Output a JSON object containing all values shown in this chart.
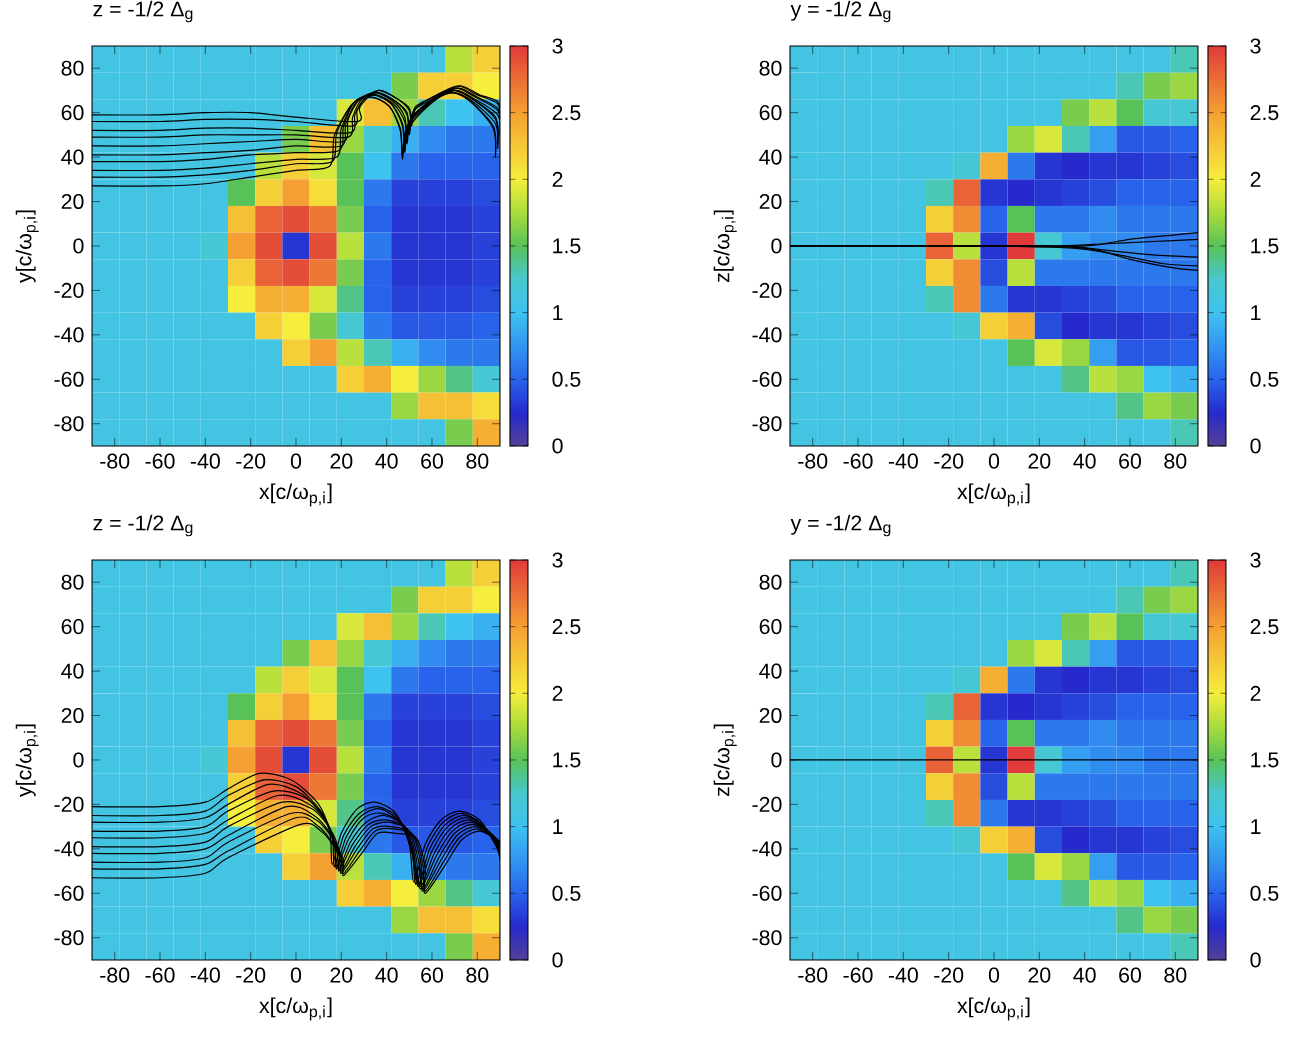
{
  "chart_data": [
    {
      "type": "heatmap",
      "title": "z = -1/2 Δ$_{g}$",
      "xlabel": "x[c/ω$_{p,i}$]",
      "ylabel": "y[c/ω$_{p,i}$]",
      "xlim": [
        -90,
        90
      ],
      "ylim": [
        -90,
        90
      ],
      "xticks": [
        -80,
        -60,
        -40,
        -20,
        0,
        20,
        40,
        60,
        80
      ],
      "yticks": [
        -80,
        -60,
        -40,
        -20,
        0,
        20,
        40,
        60,
        80
      ],
      "clim": [
        0,
        3
      ],
      "cticks": [
        0,
        0.5,
        1,
        1.5,
        2,
        2.5,
        3
      ],
      "cells": [
        [
          1.1,
          1.1,
          1.1,
          1.1,
          1.1,
          1.1,
          1.1,
          1.1,
          1.1,
          1.1,
          1.1,
          1.1,
          1.1,
          1.8,
          2.2
        ],
        [
          1.1,
          1.1,
          1.1,
          1.1,
          1.1,
          1.1,
          1.1,
          1.1,
          1.1,
          1.1,
          1.1,
          1.6,
          2.2,
          2.2,
          2.0
        ],
        [
          1.1,
          1.1,
          1.1,
          1.1,
          1.1,
          1.1,
          1.1,
          1.1,
          1.1,
          1.9,
          2.3,
          1.7,
          1.3,
          1.0,
          0.9
        ],
        [
          1.1,
          1.1,
          1.1,
          1.1,
          1.1,
          1.1,
          1.1,
          1.6,
          2.3,
          1.7,
          1.2,
          0.9,
          0.7,
          0.6,
          0.6
        ],
        [
          1.1,
          1.1,
          1.1,
          1.1,
          1.1,
          1.1,
          1.8,
          2.2,
          1.9,
          1.5,
          1.0,
          0.6,
          0.5,
          0.5,
          0.5
        ],
        [
          1.1,
          1.1,
          1.1,
          1.1,
          1.1,
          1.5,
          2.2,
          2.5,
          2.1,
          1.5,
          0.6,
          0.35,
          0.35,
          0.35,
          0.4
        ],
        [
          1.1,
          1.1,
          1.1,
          1.1,
          1.1,
          2.3,
          2.8,
          2.9,
          2.7,
          1.6,
          0.5,
          0.3,
          0.3,
          0.3,
          0.35
        ],
        [
          1.1,
          1.1,
          1.1,
          1.1,
          1.2,
          2.5,
          2.9,
          0.3,
          2.9,
          1.8,
          0.6,
          0.3,
          0.3,
          0.3,
          0.35
        ],
        [
          1.1,
          1.1,
          1.1,
          1.1,
          1.1,
          2.2,
          2.8,
          2.9,
          2.7,
          1.6,
          0.5,
          0.3,
          0.3,
          0.3,
          0.35
        ],
        [
          1.1,
          1.1,
          1.1,
          1.1,
          1.1,
          2.0,
          2.4,
          2.4,
          1.9,
          1.4,
          0.5,
          0.35,
          0.35,
          0.35,
          0.4
        ],
        [
          1.1,
          1.1,
          1.1,
          1.1,
          1.1,
          1.1,
          2.2,
          2.0,
          1.6,
          1.2,
          0.6,
          0.45,
          0.45,
          0.45,
          0.5
        ],
        [
          1.1,
          1.1,
          1.1,
          1.1,
          1.1,
          1.1,
          1.1,
          2.2,
          2.5,
          1.8,
          1.3,
          0.9,
          0.7,
          0.6,
          0.6
        ],
        [
          1.1,
          1.1,
          1.1,
          1.1,
          1.1,
          1.1,
          1.1,
          1.1,
          1.1,
          2.2,
          2.4,
          2.0,
          1.7,
          1.4,
          1.2
        ],
        [
          1.1,
          1.1,
          1.1,
          1.1,
          1.1,
          1.1,
          1.1,
          1.1,
          1.1,
          1.1,
          1.1,
          1.7,
          2.3,
          2.3,
          2.1
        ],
        [
          1.1,
          1.1,
          1.1,
          1.1,
          1.1,
          1.1,
          1.1,
          1.1,
          1.1,
          1.1,
          1.1,
          1.1,
          1.1,
          1.6,
          2.4
        ]
      ],
      "series": [
        {
          "type": "line",
          "color": "#000000",
          "x": [
            -90,
            -60,
            -40,
            -20,
            0,
            15,
            17,
            25,
            33,
            41,
            46,
            47,
            49,
            61,
            69,
            77,
            87,
            88
          ],
          "values": [
            27,
            27,
            28,
            31,
            34,
            36,
            50,
            64,
            67,
            63,
            52,
            39,
            52,
            66,
            69,
            65,
            53,
            40
          ]
        },
        {
          "type": "line",
          "color": "#000000",
          "x": [
            -90,
            -60,
            -40,
            -20,
            0,
            16,
            18,
            25,
            33,
            41,
            46,
            47,
            49,
            61,
            69,
            77,
            87,
            88
          ],
          "values": [
            31,
            31,
            32,
            34,
            37,
            38,
            51,
            64,
            67,
            63,
            53,
            41,
            54,
            66,
            69,
            65,
            54,
            42
          ]
        },
        {
          "type": "line",
          "color": "#000000",
          "x": [
            -90,
            -60,
            -40,
            -20,
            0,
            18,
            20,
            26,
            34,
            42,
            47,
            48,
            50,
            62,
            70,
            78,
            88,
            89
          ],
          "values": [
            34,
            34,
            35,
            37,
            39,
            40,
            53,
            65,
            68,
            64,
            54,
            42,
            54,
            66,
            69,
            65,
            55,
            44
          ]
        },
        {
          "type": "line",
          "color": "#000000",
          "x": [
            -90,
            -60,
            -40,
            -20,
            0,
            19,
            21,
            26,
            34,
            42,
            47,
            48,
            50,
            62,
            70,
            78,
            88,
            89
          ],
          "values": [
            38,
            38,
            39,
            41,
            42,
            43,
            54,
            65,
            68,
            64,
            55,
            44,
            56,
            67,
            70,
            66,
            57,
            46
          ]
        },
        {
          "type": "line",
          "color": "#000000",
          "x": [
            -90,
            -60,
            -40,
            -20,
            0,
            20,
            22,
            27,
            35,
            43,
            48,
            49,
            51,
            62,
            70,
            78,
            88,
            89
          ],
          "values": [
            41,
            41,
            42,
            43,
            45,
            45,
            55,
            65,
            68,
            64,
            56,
            46,
            57,
            67,
            70,
            66,
            58,
            48
          ]
        },
        {
          "type": "line",
          "color": "#000000",
          "x": [
            -90,
            -60,
            -40,
            -20,
            0,
            21,
            23,
            28,
            35,
            43,
            48,
            49,
            51,
            63,
            71,
            79,
            89,
            90
          ],
          "values": [
            45,
            45,
            46,
            47,
            48,
            47,
            57,
            66,
            69,
            65,
            58,
            48,
            58,
            67,
            70,
            66,
            59,
            50
          ]
        },
        {
          "type": "line",
          "color": "#000000",
          "x": [
            -90,
            -60,
            -40,
            -20,
            0,
            23,
            25,
            29,
            36,
            44,
            49,
            50,
            52,
            63,
            71,
            79,
            89,
            90
          ],
          "values": [
            49,
            49,
            50,
            50,
            50,
            49,
            58,
            66,
            69,
            65,
            59,
            50,
            59,
            68,
            71,
            67,
            61,
            52
          ]
        },
        {
          "type": "line",
          "color": "#000000",
          "x": [
            -90,
            -60,
            -40,
            -20,
            0,
            24,
            26,
            30,
            36,
            44,
            49,
            50,
            52,
            64,
            72,
            80,
            89,
            90
          ],
          "values": [
            52,
            52,
            53,
            53,
            52,
            51,
            59,
            66,
            69,
            65,
            60,
            52,
            61,
            68,
            71,
            67,
            62,
            55
          ]
        },
        {
          "type": "line",
          "color": "#000000",
          "x": [
            -90,
            -60,
            -40,
            -20,
            0,
            25,
            27,
            31,
            37,
            45,
            50,
            51,
            53,
            64,
            72,
            80,
            89,
            90
          ],
          "values": [
            56,
            56,
            57,
            57,
            56,
            54,
            61,
            67,
            70,
            66,
            61,
            54,
            62,
            69,
            72,
            68,
            64,
            57
          ]
        },
        {
          "type": "line",
          "color": "#000000",
          "x": [
            -90,
            -60,
            -40,
            -20,
            0,
            27,
            28,
            32,
            37,
            45,
            50,
            51,
            53,
            65,
            73,
            81,
            89,
            90
          ],
          "values": [
            59,
            59,
            60,
            60,
            58,
            56,
            62,
            67,
            70,
            66,
            62,
            56,
            63,
            69,
            72,
            68,
            65,
            59
          ]
        }
      ]
    },
    {
      "type": "heatmap",
      "title": "y = -1/2 Δ$_{g}$",
      "xlabel": "x[c/ω$_{p,i}$]",
      "ylabel": "z[c/ω$_{p,i}$]",
      "xlim": [
        -90,
        90
      ],
      "ylim": [
        -90,
        90
      ],
      "xticks": [
        -80,
        -60,
        -40,
        -20,
        0,
        20,
        40,
        60,
        80
      ],
      "yticks": [
        -80,
        -60,
        -40,
        -20,
        0,
        20,
        40,
        60,
        80
      ],
      "clim": [
        0,
        3
      ],
      "cticks": [
        0,
        0.5,
        1,
        1.5,
        2,
        2.5,
        3
      ],
      "cells": [
        [
          1.1,
          1.1,
          1.1,
          1.1,
          1.1,
          1.1,
          1.1,
          1.1,
          1.1,
          1.1,
          1.1,
          1.1,
          1.1,
          1.1,
          1.3
        ],
        [
          1.1,
          1.1,
          1.1,
          1.1,
          1.1,
          1.1,
          1.1,
          1.1,
          1.1,
          1.1,
          1.1,
          1.1,
          1.3,
          1.6,
          1.7
        ],
        [
          1.1,
          1.1,
          1.1,
          1.1,
          1.1,
          1.1,
          1.1,
          1.1,
          1.1,
          1.1,
          1.6,
          1.8,
          1.5,
          1.2,
          1.2
        ],
        [
          1.1,
          1.1,
          1.1,
          1.1,
          1.1,
          1.1,
          1.1,
          1.1,
          1.7,
          1.9,
          1.3,
          0.8,
          0.45,
          0.45,
          0.5
        ],
        [
          1.1,
          1.1,
          1.1,
          1.1,
          1.1,
          1.1,
          1.2,
          2.4,
          0.6,
          0.3,
          0.25,
          0.3,
          0.3,
          0.35,
          0.4
        ],
        [
          1.1,
          1.1,
          1.1,
          1.1,
          1.1,
          1.3,
          2.8,
          0.3,
          0.25,
          0.3,
          0.35,
          0.4,
          0.5,
          0.5,
          0.5
        ],
        [
          1.1,
          1.1,
          1.1,
          1.1,
          1.1,
          2.2,
          2.6,
          0.5,
          1.5,
          0.6,
          0.6,
          0.7,
          0.6,
          0.6,
          0.6
        ],
        [
          1.1,
          1.1,
          1.1,
          1.1,
          1.1,
          2.8,
          1.8,
          0.3,
          3,
          1.2,
          0.8,
          0.7,
          0.7,
          0.6,
          0.6
        ],
        [
          1.1,
          1.1,
          1.1,
          1.1,
          1.1,
          2.2,
          2.6,
          0.4,
          1.8,
          0.6,
          0.6,
          0.6,
          0.6,
          0.6,
          0.6
        ],
        [
          1.1,
          1.1,
          1.1,
          1.1,
          1.1,
          1.3,
          2.6,
          0.6,
          0.3,
          0.3,
          0.35,
          0.4,
          0.5,
          0.5,
          0.5
        ],
        [
          1.1,
          1.1,
          1.1,
          1.1,
          1.1,
          1.1,
          1.2,
          2.2,
          2.4,
          0.4,
          0.25,
          0.3,
          0.3,
          0.35,
          0.4
        ],
        [
          1.1,
          1.1,
          1.1,
          1.1,
          1.1,
          1.1,
          1.1,
          1.1,
          1.5,
          1.9,
          1.7,
          0.8,
          0.45,
          0.45,
          0.5
        ],
        [
          1.1,
          1.1,
          1.1,
          1.1,
          1.1,
          1.1,
          1.1,
          1.1,
          1.1,
          1.1,
          1.4,
          1.8,
          1.7,
          1.0,
          0.9
        ],
        [
          1.1,
          1.1,
          1.1,
          1.1,
          1.1,
          1.1,
          1.1,
          1.1,
          1.1,
          1.1,
          1.1,
          1.1,
          1.4,
          1.7,
          1.6
        ],
        [
          1.1,
          1.1,
          1.1,
          1.1,
          1.1,
          1.1,
          1.1,
          1.1,
          1.1,
          1.1,
          1.1,
          1.1,
          1.1,
          1.1,
          1.3
        ]
      ],
      "series": [
        {
          "type": "line",
          "color": "#000000",
          "x": [
            -90,
            -40,
            0,
            30,
            50,
            70,
            90
          ],
          "values": [
            0,
            0,
            0,
            0,
            1,
            2,
            3
          ]
        },
        {
          "type": "line",
          "color": "#000000",
          "x": [
            -90,
            -40,
            0,
            30,
            50,
            70,
            90
          ],
          "values": [
            0,
            0,
            0,
            0,
            -2,
            -4,
            -5
          ]
        },
        {
          "type": "line",
          "color": "#000000",
          "x": [
            -90,
            -40,
            0,
            35,
            55,
            75,
            90
          ],
          "values": [
            0,
            0,
            0,
            -1,
            -4,
            -8,
            -9
          ]
        },
        {
          "type": "line",
          "color": "#000000",
          "x": [
            -90,
            -40,
            0,
            40,
            60,
            80,
            90
          ],
          "values": [
            0,
            0,
            0,
            -1,
            -6,
            -10,
            -11
          ]
        },
        {
          "type": "line",
          "color": "#000000",
          "x": [
            -90,
            -40,
            0,
            40,
            60,
            80,
            90
          ],
          "values": [
            0,
            0,
            0,
            0,
            3,
            5,
            6
          ]
        }
      ]
    },
    {
      "type": "heatmap",
      "title": "z = -1/2 Δ$_{g}$",
      "xlabel": "x[c/ω$_{p,i}$]",
      "ylabel": "y[c/ω$_{p,i}$]",
      "xlim": [
        -90,
        90
      ],
      "ylim": [
        -90,
        90
      ],
      "xticks": [
        -80,
        -60,
        -40,
        -20,
        0,
        20,
        40,
        60,
        80
      ],
      "yticks": [
        -80,
        -60,
        -40,
        -20,
        0,
        20,
        40,
        60,
        80
      ],
      "clim": [
        0,
        3
      ],
      "cticks": [
        0,
        0.5,
        1,
        1.5,
        2,
        2.5,
        3
      ],
      "cells": [
        [
          1.1,
          1.1,
          1.1,
          1.1,
          1.1,
          1.1,
          1.1,
          1.1,
          1.1,
          1.1,
          1.1,
          1.1,
          1.1,
          1.8,
          2.2
        ],
        [
          1.1,
          1.1,
          1.1,
          1.1,
          1.1,
          1.1,
          1.1,
          1.1,
          1.1,
          1.1,
          1.1,
          1.6,
          2.2,
          2.2,
          2.0
        ],
        [
          1.1,
          1.1,
          1.1,
          1.1,
          1.1,
          1.1,
          1.1,
          1.1,
          1.1,
          1.9,
          2.3,
          1.7,
          1.3,
          1.0,
          0.9
        ],
        [
          1.1,
          1.1,
          1.1,
          1.1,
          1.1,
          1.1,
          1.1,
          1.6,
          2.3,
          1.7,
          1.2,
          0.9,
          0.7,
          0.6,
          0.6
        ],
        [
          1.1,
          1.1,
          1.1,
          1.1,
          1.1,
          1.1,
          1.8,
          2.2,
          1.9,
          1.5,
          1.0,
          0.6,
          0.5,
          0.5,
          0.5
        ],
        [
          1.1,
          1.1,
          1.1,
          1.1,
          1.1,
          1.5,
          2.2,
          2.5,
          2.1,
          1.5,
          0.6,
          0.35,
          0.35,
          0.35,
          0.4
        ],
        [
          1.1,
          1.1,
          1.1,
          1.1,
          1.1,
          2.3,
          2.8,
          2.9,
          2.7,
          1.6,
          0.5,
          0.3,
          0.3,
          0.3,
          0.35
        ],
        [
          1.1,
          1.1,
          1.1,
          1.1,
          1.2,
          2.5,
          2.9,
          0.3,
          2.9,
          1.8,
          0.6,
          0.3,
          0.3,
          0.3,
          0.35
        ],
        [
          1.1,
          1.1,
          1.1,
          1.1,
          1.1,
          2.2,
          2.8,
          2.9,
          2.7,
          1.6,
          0.5,
          0.3,
          0.3,
          0.3,
          0.35
        ],
        [
          1.1,
          1.1,
          1.1,
          1.1,
          1.1,
          2.0,
          2.4,
          2.4,
          1.9,
          1.4,
          0.5,
          0.35,
          0.35,
          0.35,
          0.4
        ],
        [
          1.1,
          1.1,
          1.1,
          1.1,
          1.1,
          1.1,
          2.2,
          2.0,
          1.6,
          1.2,
          0.6,
          0.45,
          0.45,
          0.45,
          0.5
        ],
        [
          1.1,
          1.1,
          1.1,
          1.1,
          1.1,
          1.1,
          1.1,
          2.2,
          2.5,
          1.8,
          1.3,
          0.9,
          0.7,
          0.6,
          0.6
        ],
        [
          1.1,
          1.1,
          1.1,
          1.1,
          1.1,
          1.1,
          1.1,
          1.1,
          1.1,
          2.2,
          2.4,
          2.0,
          1.7,
          1.4,
          1.2
        ],
        [
          1.1,
          1.1,
          1.1,
          1.1,
          1.1,
          1.1,
          1.1,
          1.1,
          1.1,
          1.1,
          1.1,
          1.7,
          2.3,
          2.3,
          2.1
        ],
        [
          1.1,
          1.1,
          1.1,
          1.1,
          1.1,
          1.1,
          1.1,
          1.1,
          1.1,
          1.1,
          1.1,
          1.1,
          1.1,
          1.6,
          2.4
        ]
      ],
      "series": [
        {
          "type": "line",
          "color": "#000000",
          "x": [
            -90,
            -60,
            -40,
            -30,
            -16,
            -2,
            10,
            15,
            16,
            20,
            27,
            35,
            44,
            50,
            52,
            57,
            64,
            72,
            81,
            88,
            90
          ],
          "values": [
            -21,
            -21,
            -19,
            -13,
            -6,
            -9,
            -20,
            -33,
            -47,
            -33,
            -22,
            -19,
            -24,
            -38,
            -55,
            -38,
            -27,
            -23,
            -27,
            -38,
            -44
          ]
        },
        {
          "type": "line",
          "color": "#000000",
          "x": [
            -90,
            -60,
            -40,
            -30,
            -14,
            0,
            11,
            16,
            17,
            21,
            28,
            36,
            45,
            51,
            53,
            58,
            65,
            73,
            82,
            89,
            90
          ],
          "values": [
            -25,
            -25,
            -23,
            -16,
            -9,
            -12,
            -23,
            -35,
            -48,
            -34,
            -24,
            -21,
            -26,
            -40,
            -56,
            -39,
            -28,
            -24,
            -29,
            -40,
            -45
          ]
        },
        {
          "type": "line",
          "color": "#000000",
          "x": [
            -90,
            -60,
            -40,
            -30,
            -12,
            2,
            12,
            17,
            18,
            22,
            29,
            37,
            46,
            51,
            54,
            59,
            66,
            74,
            83,
            90
          ],
          "values": [
            -28,
            -28,
            -26,
            -20,
            -11,
            -15,
            -25,
            -37,
            -48,
            -35,
            -25,
            -22,
            -28,
            -41,
            -56,
            -40,
            -29,
            -25,
            -30,
            -41
          ]
        },
        {
          "type": "line",
          "color": "#000000",
          "x": [
            -90,
            -60,
            -40,
            -30,
            -10,
            4,
            13,
            17,
            18,
            23,
            30,
            38,
            47,
            52,
            54,
            60,
            67,
            75,
            84,
            90
          ],
          "values": [
            -32,
            -32,
            -30,
            -23,
            -14,
            -17,
            -27,
            -39,
            -49,
            -36,
            -26,
            -24,
            -29,
            -42,
            -57,
            -41,
            -30,
            -26,
            -31,
            -40
          ]
        },
        {
          "type": "line",
          "color": "#000000",
          "x": [
            -90,
            -60,
            -40,
            -30,
            -8,
            6,
            14,
            18,
            19,
            24,
            31,
            39,
            48,
            52,
            55,
            61,
            68,
            76,
            85,
            90
          ],
          "values": [
            -35,
            -35,
            -33,
            -27,
            -16,
            -20,
            -29,
            -40,
            -49,
            -37,
            -28,
            -25,
            -30,
            -43,
            -57,
            -42,
            -31,
            -27,
            -32,
            -40
          ]
        },
        {
          "type": "line",
          "color": "#000000",
          "x": [
            -90,
            -60,
            -40,
            -30,
            -6,
            7,
            15,
            19,
            19,
            25,
            32,
            40,
            49,
            53,
            55,
            62,
            69,
            77,
            86,
            90
          ],
          "values": [
            -39,
            -39,
            -37,
            -30,
            -19,
            -22,
            -31,
            -41,
            -50,
            -38,
            -29,
            -27,
            -31,
            -44,
            -58,
            -43,
            -32,
            -28,
            -33,
            -39
          ]
        },
        {
          "type": "line",
          "color": "#000000",
          "x": [
            -90,
            -60,
            -40,
            -30,
            -4,
            8,
            15,
            19,
            20,
            26,
            33,
            41,
            50,
            54,
            56,
            63,
            70,
            78,
            87,
            90
          ],
          "values": [
            -42,
            -42,
            -40,
            -34,
            -21,
            -25,
            -33,
            -42,
            -50,
            -39,
            -30,
            -28,
            -32,
            -45,
            -58,
            -44,
            -33,
            -29,
            -34,
            -38
          ]
        },
        {
          "type": "line",
          "color": "#000000",
          "x": [
            -90,
            -60,
            -40,
            -30,
            -2,
            9,
            16,
            20,
            20,
            27,
            34,
            42,
            51,
            55,
            56,
            64,
            71,
            79,
            88,
            90
          ],
          "values": [
            -46,
            -46,
            -44,
            -37,
            -24,
            -27,
            -35,
            -43,
            -51,
            -40,
            -31,
            -30,
            -33,
            -46,
            -59,
            -45,
            -34,
            -30,
            -35,
            -38
          ]
        },
        {
          "type": "line",
          "color": "#000000",
          "x": [
            -90,
            -60,
            -40,
            -30,
            0,
            10,
            16,
            20,
            21,
            28,
            35,
            43,
            52,
            56,
            57,
            65,
            72,
            80,
            89,
            90
          ],
          "values": [
            -49,
            -49,
            -47,
            -41,
            -26,
            -30,
            -37,
            -44,
            -51,
            -41,
            -32,
            -31,
            -34,
            -47,
            -59,
            -46,
            -35,
            -31,
            -36,
            -37
          ]
        },
        {
          "type": "line",
          "color": "#000000",
          "x": [
            -90,
            -60,
            -40,
            -30,
            2,
            11,
            17,
            21,
            21,
            29,
            36,
            44,
            53,
            57,
            57,
            66,
            73,
            81,
            90
          ],
          "values": [
            -53,
            -53,
            -51,
            -44,
            -29,
            -32,
            -39,
            -45,
            -52,
            -42,
            -33,
            -33,
            -35,
            -48,
            -60,
            -47,
            -36,
            -32,
            -37
          ]
        }
      ]
    },
    {
      "type": "heatmap",
      "title": "y = -1/2 Δ$_{g}$",
      "xlabel": "x[c/ω$_{p,i}$]",
      "ylabel": "z[c/ω$_{p,i}$]",
      "xlim": [
        -90,
        90
      ],
      "ylim": [
        -90,
        90
      ],
      "xticks": [
        -80,
        -60,
        -40,
        -20,
        0,
        20,
        40,
        60,
        80
      ],
      "yticks": [
        -80,
        -60,
        -40,
        -20,
        0,
        20,
        40,
        60,
        80
      ],
      "clim": [
        0,
        3
      ],
      "cticks": [
        0,
        0.5,
        1,
        1.5,
        2,
        2.5,
        3
      ],
      "cells": [
        [
          1.1,
          1.1,
          1.1,
          1.1,
          1.1,
          1.1,
          1.1,
          1.1,
          1.1,
          1.1,
          1.1,
          1.1,
          1.1,
          1.1,
          1.3
        ],
        [
          1.1,
          1.1,
          1.1,
          1.1,
          1.1,
          1.1,
          1.1,
          1.1,
          1.1,
          1.1,
          1.1,
          1.1,
          1.3,
          1.6,
          1.7
        ],
        [
          1.1,
          1.1,
          1.1,
          1.1,
          1.1,
          1.1,
          1.1,
          1.1,
          1.1,
          1.1,
          1.6,
          1.8,
          1.5,
          1.2,
          1.2
        ],
        [
          1.1,
          1.1,
          1.1,
          1.1,
          1.1,
          1.1,
          1.1,
          1.1,
          1.7,
          1.9,
          1.3,
          0.8,
          0.45,
          0.45,
          0.5
        ],
        [
          1.1,
          1.1,
          1.1,
          1.1,
          1.1,
          1.1,
          1.2,
          2.4,
          0.6,
          0.3,
          0.25,
          0.3,
          0.3,
          0.35,
          0.4
        ],
        [
          1.1,
          1.1,
          1.1,
          1.1,
          1.1,
          1.3,
          2.8,
          0.3,
          0.25,
          0.3,
          0.35,
          0.4,
          0.5,
          0.5,
          0.5
        ],
        [
          1.1,
          1.1,
          1.1,
          1.1,
          1.1,
          2.2,
          2.6,
          0.5,
          1.5,
          0.6,
          0.6,
          0.7,
          0.6,
          0.6,
          0.6
        ],
        [
          1.1,
          1.1,
          1.1,
          1.1,
          1.1,
          2.8,
          1.8,
          0.3,
          3,
          1.2,
          0.8,
          0.7,
          0.7,
          0.6,
          0.6
        ],
        [
          1.1,
          1.1,
          1.1,
          1.1,
          1.1,
          2.2,
          2.6,
          0.4,
          1.8,
          0.6,
          0.6,
          0.6,
          0.6,
          0.6,
          0.6
        ],
        [
          1.1,
          1.1,
          1.1,
          1.1,
          1.1,
          1.3,
          2.6,
          0.6,
          0.3,
          0.3,
          0.35,
          0.4,
          0.5,
          0.5,
          0.5
        ],
        [
          1.1,
          1.1,
          1.1,
          1.1,
          1.1,
          1.1,
          1.2,
          2.2,
          2.4,
          0.4,
          0.25,
          0.3,
          0.3,
          0.35,
          0.4
        ],
        [
          1.1,
          1.1,
          1.1,
          1.1,
          1.1,
          1.1,
          1.1,
          1.1,
          1.5,
          1.9,
          1.7,
          0.8,
          0.45,
          0.45,
          0.5
        ],
        [
          1.1,
          1.1,
          1.1,
          1.1,
          1.1,
          1.1,
          1.1,
          1.1,
          1.1,
          1.1,
          1.4,
          1.8,
          1.7,
          1.0,
          0.9
        ],
        [
          1.1,
          1.1,
          1.1,
          1.1,
          1.1,
          1.1,
          1.1,
          1.1,
          1.1,
          1.1,
          1.1,
          1.1,
          1.4,
          1.7,
          1.6
        ],
        [
          1.1,
          1.1,
          1.1,
          1.1,
          1.1,
          1.1,
          1.1,
          1.1,
          1.1,
          1.1,
          1.1,
          1.1,
          1.1,
          1.1,
          1.3
        ]
      ],
      "series": [
        {
          "type": "line",
          "color": "#000000",
          "x": [
            -90,
            0,
            90
          ],
          "values": [
            0,
            0,
            0
          ]
        }
      ]
    }
  ]
}
